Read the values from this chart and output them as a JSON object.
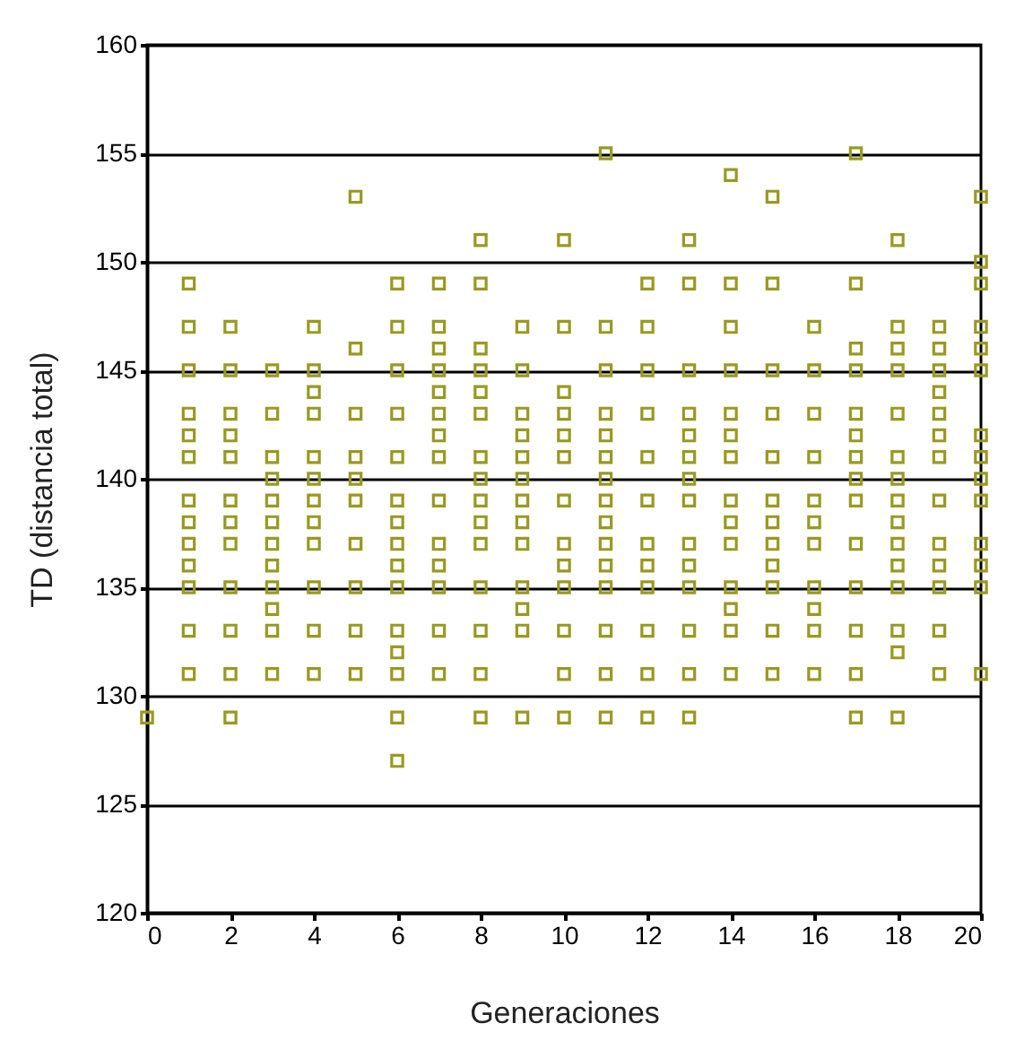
{
  "chart_data": {
    "type": "scatter",
    "xlabel": "Generaciones",
    "ylabel": "TD (distancia total)",
    "xlim": [
      0,
      20
    ],
    "xticks": [
      0,
      2,
      4,
      6,
      8,
      10,
      12,
      14,
      16,
      18,
      20
    ],
    "ylim": [
      120,
      160
    ],
    "yticks": [
      120,
      125,
      130,
      135,
      140,
      145,
      150,
      155,
      160
    ],
    "grid": "y",
    "marker": "square",
    "series": [
      {
        "color": "#999922",
        "x": [
          0,
          1,
          1,
          1,
          1,
          1,
          1,
          1,
          1,
          1,
          1,
          1,
          1,
          1,
          2,
          2,
          2,
          2,
          2,
          2,
          2,
          2,
          2,
          2,
          2,
          2,
          3,
          3,
          3,
          3,
          3,
          3,
          3,
          3,
          3,
          3,
          3,
          3,
          4,
          4,
          4,
          4,
          4,
          4,
          4,
          4,
          4,
          4,
          4,
          4,
          5,
          5,
          5,
          5,
          5,
          5,
          5,
          5,
          5,
          5,
          6,
          6,
          6,
          6,
          6,
          6,
          6,
          6,
          6,
          6,
          6,
          6,
          6,
          6,
          6,
          7,
          7,
          7,
          7,
          7,
          7,
          7,
          7,
          7,
          7,
          7,
          7,
          7,
          7,
          8,
          8,
          8,
          8,
          8,
          8,
          8,
          8,
          8,
          8,
          8,
          8,
          8,
          8,
          8,
          9,
          9,
          9,
          9,
          9,
          9,
          9,
          9,
          9,
          9,
          9,
          9,
          9,
          10,
          10,
          10,
          10,
          10,
          10,
          10,
          10,
          10,
          10,
          10,
          10,
          10,
          11,
          11,
          11,
          11,
          11,
          11,
          11,
          11,
          11,
          11,
          11,
          11,
          11,
          11,
          11,
          12,
          12,
          12,
          12,
          12,
          12,
          12,
          12,
          12,
          12,
          12,
          12,
          13,
          13,
          13,
          13,
          13,
          13,
          13,
          13,
          13,
          13,
          13,
          13,
          13,
          13,
          14,
          14,
          14,
          14,
          14,
          14,
          14,
          14,
          14,
          14,
          14,
          14,
          14,
          14,
          15,
          15,
          15,
          15,
          15,
          15,
          15,
          15,
          15,
          15,
          15,
          15,
          16,
          16,
          16,
          16,
          16,
          16,
          16,
          16,
          16,
          16,
          16,
          17,
          17,
          17,
          17,
          17,
          17,
          17,
          17,
          17,
          17,
          17,
          17,
          17,
          17,
          18,
          18,
          18,
          18,
          18,
          18,
          18,
          18,
          18,
          18,
          18,
          18,
          18,
          18,
          18,
          19,
          19,
          19,
          19,
          19,
          19,
          19,
          19,
          19,
          19,
          19,
          19,
          19,
          20,
          20,
          20,
          20,
          20,
          20,
          20,
          20,
          20,
          20,
          20,
          20,
          20,
          20
        ],
        "values": [
          129,
          149,
          147,
          145,
          143,
          142,
          141,
          139,
          138,
          137,
          136,
          135,
          133,
          131,
          147,
          145,
          143,
          142,
          141,
          139,
          138,
          137,
          135,
          133,
          131,
          129,
          145,
          143,
          141,
          140,
          139,
          138,
          137,
          136,
          135,
          134,
          133,
          131,
          147,
          145,
          144,
          143,
          141,
          140,
          139,
          138,
          137,
          135,
          133,
          131,
          153,
          146,
          143,
          141,
          140,
          139,
          137,
          135,
          133,
          131,
          149,
          147,
          145,
          143,
          141,
          139,
          138,
          137,
          136,
          135,
          133,
          132,
          131,
          129,
          127,
          149,
          147,
          146,
          145,
          144,
          143,
          142,
          141,
          139,
          137,
          136,
          135,
          133,
          131,
          151,
          149,
          146,
          145,
          144,
          143,
          141,
          140,
          139,
          138,
          137,
          135,
          133,
          131,
          129,
          147,
          145,
          143,
          142,
          141,
          140,
          139,
          138,
          137,
          135,
          134,
          133,
          129,
          151,
          147,
          144,
          143,
          142,
          141,
          139,
          137,
          136,
          135,
          133,
          131,
          129,
          155,
          147,
          145,
          143,
          142,
          141,
          140,
          139,
          138,
          137,
          136,
          135,
          133,
          131,
          129,
          149,
          147,
          145,
          143,
          141,
          139,
          137,
          136,
          135,
          133,
          131,
          129,
          151,
          149,
          145,
          143,
          142,
          141,
          140,
          139,
          137,
          136,
          135,
          133,
          131,
          129,
          154,
          149,
          147,
          145,
          143,
          142,
          141,
          139,
          138,
          137,
          135,
          134,
          133,
          131,
          153,
          149,
          145,
          143,
          141,
          139,
          138,
          137,
          136,
          135,
          133,
          131,
          147,
          145,
          143,
          141,
          139,
          138,
          137,
          135,
          134,
          133,
          131,
          155,
          149,
          146,
          145,
          143,
          142,
          141,
          140,
          139,
          137,
          135,
          133,
          131,
          129,
          151,
          147,
          146,
          145,
          143,
          141,
          140,
          139,
          138,
          137,
          136,
          135,
          133,
          132,
          129,
          147,
          146,
          145,
          144,
          143,
          142,
          141,
          139,
          137,
          136,
          135,
          133,
          131,
          153,
          150,
          149,
          147,
          146,
          145,
          142,
          141,
          140,
          139,
          137,
          136,
          135,
          131
        ]
      }
    ]
  }
}
